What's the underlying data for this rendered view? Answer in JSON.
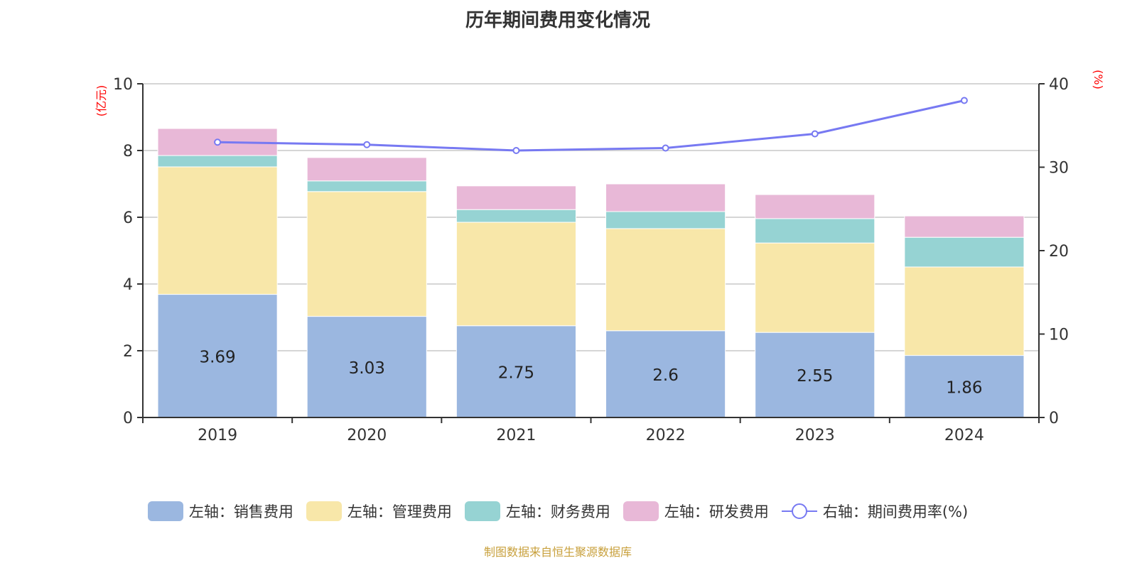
{
  "chart_data": {
    "type": "bar",
    "stacked": true,
    "title": "历年期间费用变化情况",
    "categories": [
      "2019",
      "2020",
      "2021",
      "2022",
      "2023",
      "2024"
    ],
    "left_axis": {
      "label": "(亿元)",
      "range": [
        0,
        10
      ],
      "ticks": [
        0,
        2,
        4,
        6,
        8,
        10
      ]
    },
    "right_axis": {
      "label": "(%)",
      "range": [
        0,
        40
      ],
      "ticks": [
        0,
        10,
        20,
        30,
        40
      ]
    },
    "grid": true,
    "legend_position": "bottom",
    "series": [
      {
        "name": "左轴：销售费用",
        "axis": "left",
        "type": "bar",
        "color": "#9bb7e0",
        "values": [
          3.69,
          3.03,
          2.75,
          2.6,
          2.55,
          1.86
        ],
        "show_labels": true
      },
      {
        "name": "左轴：管理费用",
        "axis": "left",
        "type": "bar",
        "color": "#f8e7a9",
        "values": [
          3.82,
          3.74,
          3.1,
          3.06,
          2.68,
          2.65
        ]
      },
      {
        "name": "左轴：财务费用",
        "axis": "left",
        "type": "bar",
        "color": "#96d3d3",
        "values": [
          0.34,
          0.32,
          0.38,
          0.51,
          0.73,
          0.89
        ]
      },
      {
        "name": "左轴：研发费用",
        "axis": "left",
        "type": "bar",
        "color": "#e8b8d7",
        "values": [
          0.81,
          0.7,
          0.71,
          0.83,
          0.72,
          0.64
        ]
      },
      {
        "name": "右轴：期间费用率(%)",
        "axis": "right",
        "type": "line",
        "color": "#7779f2",
        "values": [
          33.0,
          32.7,
          32.0,
          32.3,
          34.0,
          38.0
        ]
      }
    ]
  },
  "source": "制图数据来自恒生聚源数据库"
}
